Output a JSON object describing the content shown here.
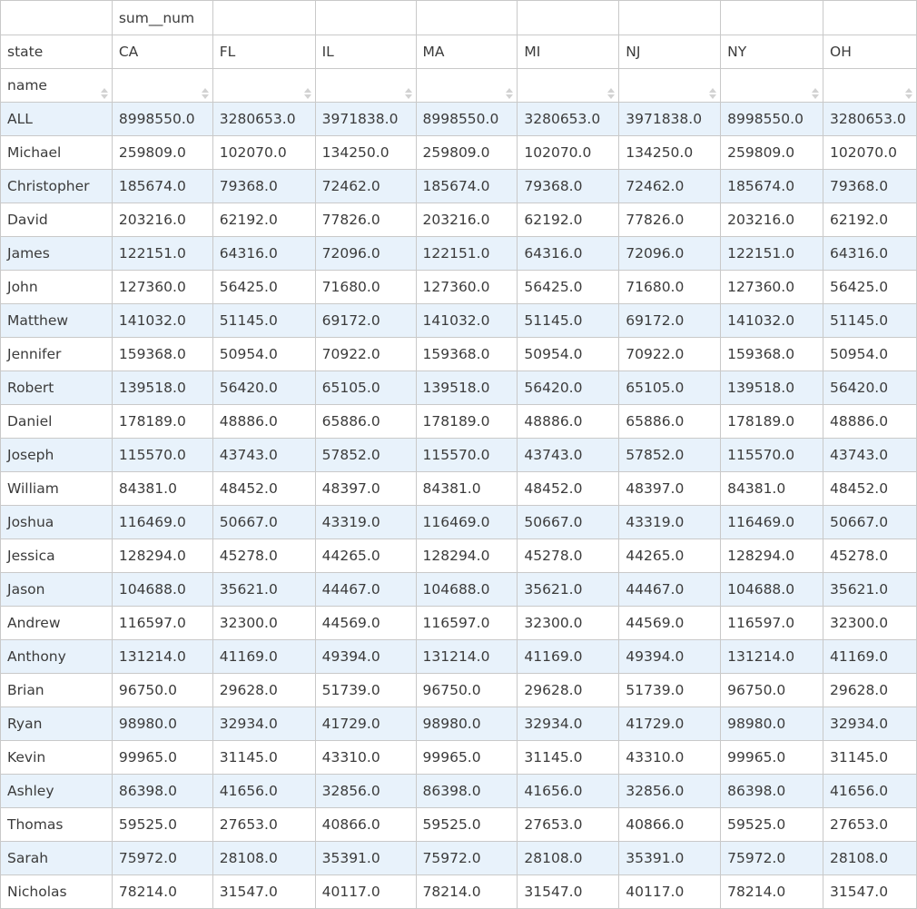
{
  "header": {
    "metric_label": "sum__num",
    "column_dim_label": "state",
    "row_dim_label": "name",
    "states": [
      "CA",
      "FL",
      "IL",
      "MA",
      "MI",
      "NJ",
      "NY",
      "OH"
    ]
  },
  "rows": [
    {
      "name": "ALL",
      "values": [
        "8998550.0",
        "3280653.0",
        "3971838.0",
        "8998550.0",
        "3280653.0",
        "3971838.0",
        "8998550.0",
        "3280653.0"
      ]
    },
    {
      "name": "Michael",
      "values": [
        "259809.0",
        "102070.0",
        "134250.0",
        "259809.0",
        "102070.0",
        "134250.0",
        "259809.0",
        "102070.0"
      ]
    },
    {
      "name": "Christopher",
      "values": [
        "185674.0",
        "79368.0",
        "72462.0",
        "185674.0",
        "79368.0",
        "72462.0",
        "185674.0",
        "79368.0"
      ]
    },
    {
      "name": "David",
      "values": [
        "203216.0",
        "62192.0",
        "77826.0",
        "203216.0",
        "62192.0",
        "77826.0",
        "203216.0",
        "62192.0"
      ]
    },
    {
      "name": "James",
      "values": [
        "122151.0",
        "64316.0",
        "72096.0",
        "122151.0",
        "64316.0",
        "72096.0",
        "122151.0",
        "64316.0"
      ]
    },
    {
      "name": "John",
      "values": [
        "127360.0",
        "56425.0",
        "71680.0",
        "127360.0",
        "56425.0",
        "71680.0",
        "127360.0",
        "56425.0"
      ]
    },
    {
      "name": "Matthew",
      "values": [
        "141032.0",
        "51145.0",
        "69172.0",
        "141032.0",
        "51145.0",
        "69172.0",
        "141032.0",
        "51145.0"
      ]
    },
    {
      "name": "Jennifer",
      "values": [
        "159368.0",
        "50954.0",
        "70922.0",
        "159368.0",
        "50954.0",
        "70922.0",
        "159368.0",
        "50954.0"
      ]
    },
    {
      "name": "Robert",
      "values": [
        "139518.0",
        "56420.0",
        "65105.0",
        "139518.0",
        "56420.0",
        "65105.0",
        "139518.0",
        "56420.0"
      ]
    },
    {
      "name": "Daniel",
      "values": [
        "178189.0",
        "48886.0",
        "65886.0",
        "178189.0",
        "48886.0",
        "65886.0",
        "178189.0",
        "48886.0"
      ]
    },
    {
      "name": "Joseph",
      "values": [
        "115570.0",
        "43743.0",
        "57852.0",
        "115570.0",
        "43743.0",
        "57852.0",
        "115570.0",
        "43743.0"
      ]
    },
    {
      "name": "William",
      "values": [
        "84381.0",
        "48452.0",
        "48397.0",
        "84381.0",
        "48452.0",
        "48397.0",
        "84381.0",
        "48452.0"
      ]
    },
    {
      "name": "Joshua",
      "values": [
        "116469.0",
        "50667.0",
        "43319.0",
        "116469.0",
        "50667.0",
        "43319.0",
        "116469.0",
        "50667.0"
      ]
    },
    {
      "name": "Jessica",
      "values": [
        "128294.0",
        "45278.0",
        "44265.0",
        "128294.0",
        "45278.0",
        "44265.0",
        "128294.0",
        "45278.0"
      ]
    },
    {
      "name": "Jason",
      "values": [
        "104688.0",
        "35621.0",
        "44467.0",
        "104688.0",
        "35621.0",
        "44467.0",
        "104688.0",
        "35621.0"
      ]
    },
    {
      "name": "Andrew",
      "values": [
        "116597.0",
        "32300.0",
        "44569.0",
        "116597.0",
        "32300.0",
        "44569.0",
        "116597.0",
        "32300.0"
      ]
    },
    {
      "name": "Anthony",
      "values": [
        "131214.0",
        "41169.0",
        "49394.0",
        "131214.0",
        "41169.0",
        "49394.0",
        "131214.0",
        "41169.0"
      ]
    },
    {
      "name": "Brian",
      "values": [
        "96750.0",
        "29628.0",
        "51739.0",
        "96750.0",
        "29628.0",
        "51739.0",
        "96750.0",
        "29628.0"
      ]
    },
    {
      "name": "Ryan",
      "values": [
        "98980.0",
        "32934.0",
        "41729.0",
        "98980.0",
        "32934.0",
        "41729.0",
        "98980.0",
        "32934.0"
      ]
    },
    {
      "name": "Kevin",
      "values": [
        "99965.0",
        "31145.0",
        "43310.0",
        "99965.0",
        "31145.0",
        "43310.0",
        "99965.0",
        "31145.0"
      ]
    },
    {
      "name": "Ashley",
      "values": [
        "86398.0",
        "41656.0",
        "32856.0",
        "86398.0",
        "41656.0",
        "32856.0",
        "86398.0",
        "41656.0"
      ]
    },
    {
      "name": "Thomas",
      "values": [
        "59525.0",
        "27653.0",
        "40866.0",
        "59525.0",
        "27653.0",
        "40866.0",
        "59525.0",
        "27653.0"
      ]
    },
    {
      "name": "Sarah",
      "values": [
        "75972.0",
        "28108.0",
        "35391.0",
        "75972.0",
        "28108.0",
        "35391.0",
        "75972.0",
        "28108.0"
      ]
    },
    {
      "name": "Nicholas",
      "values": [
        "78214.0",
        "31547.0",
        "40117.0",
        "78214.0",
        "31547.0",
        "40117.0",
        "78214.0",
        "31547.0"
      ]
    }
  ],
  "colors": {
    "border": "#c9c9c9",
    "stripe": "#e8f2fb",
    "text": "#3b3b3b",
    "sort_icon": "#d2d2d2"
  }
}
